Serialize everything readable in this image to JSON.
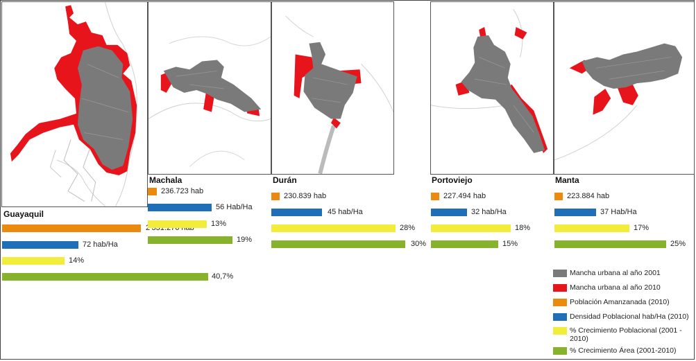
{
  "colors": {
    "urban_2001": "#7a7a7a",
    "urban_2010": "#e8141c",
    "poblacion": "#ec8a10",
    "densidad": "#1f6fb8",
    "crec_poblacional": "#f2ec3a",
    "crec_area": "#86b22c"
  },
  "cities": [
    {
      "name": "Guayaquil",
      "poblacion": "2’331.276 hab",
      "densidad": "72 hab/Ha",
      "crec_pob": "14%",
      "crec_area": "40,7%",
      "values": {
        "poblacion_hab": 2331276,
        "densidad_hab_ha": 72,
        "crec_pob_pct": 14,
        "crec_area_pct": 40.7
      }
    },
    {
      "name": "Machala",
      "poblacion": "236.723 hab",
      "densidad": "56 Hab/Ha",
      "crec_pob": "13%",
      "crec_area": "19%",
      "values": {
        "poblacion_hab": 236723,
        "densidad_hab_ha": 56,
        "crec_pob_pct": 13,
        "crec_area_pct": 19
      }
    },
    {
      "name": "Durán",
      "poblacion": "230.839 hab",
      "densidad": "45 hab/Ha",
      "crec_pob": "28%",
      "crec_area": "30%",
      "values": {
        "poblacion_hab": 230839,
        "densidad_hab_ha": 45,
        "crec_pob_pct": 28,
        "crec_area_pct": 30
      }
    },
    {
      "name": "Portoviejo",
      "poblacion": "227.494 hab",
      "densidad": "32 hab/Ha",
      "crec_pob": "18%",
      "crec_area": "15%",
      "values": {
        "poblacion_hab": 227494,
        "densidad_hab_ha": 32,
        "crec_pob_pct": 18,
        "crec_area_pct": 15
      }
    },
    {
      "name": "Manta",
      "poblacion": "223.884 hab",
      "densidad": "37 Hab/Ha",
      "crec_pob": "17%",
      "crec_area": "25%",
      "values": {
        "poblacion_hab": 223884,
        "densidad_hab_ha": 37,
        "crec_pob_pct": 17,
        "crec_area_pct": 25
      }
    }
  ],
  "legend": [
    {
      "label": "Mancha urbana al año 2001",
      "color": "#7a7a7a"
    },
    {
      "label": "Mancha urbana al año 2010",
      "color": "#e8141c"
    },
    {
      "label": "Población Amanzanada (2010)",
      "color": "#ec8a10"
    },
    {
      "label": "Densidad Poblacional hab/Ha (2010)",
      "color": "#1f6fb8"
    },
    {
      "label": "% Crecimiento Poblacional (2001 - 2010)",
      "color": "#f2ec3a"
    },
    {
      "label": "% Crecimiento Área (2001-2010)",
      "color": "#86b22c"
    }
  ]
}
